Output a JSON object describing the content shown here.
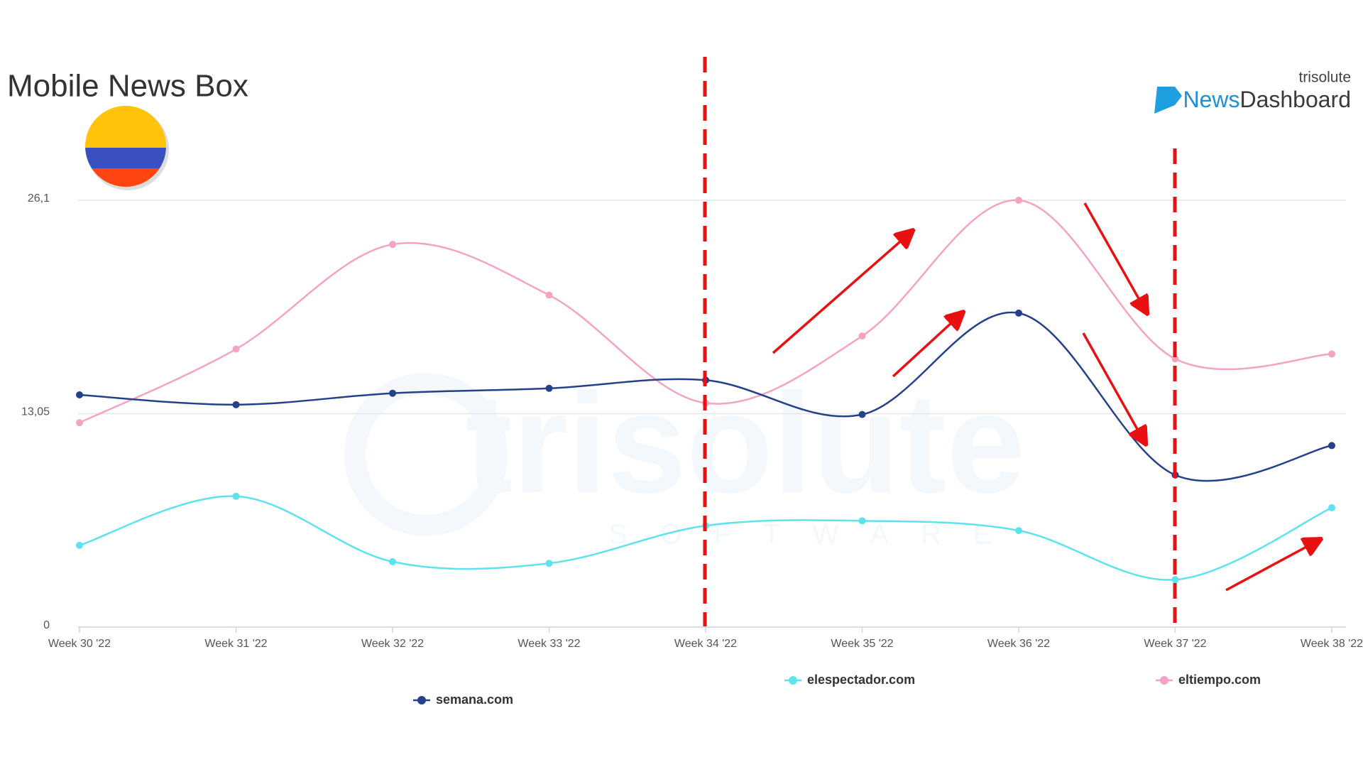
{
  "chart_data": {
    "type": "line",
    "title": "Mobile News Box",
    "brand": {
      "company": "trisolute",
      "product_a": "News",
      "product_b": "Dashboard"
    },
    "watermark": {
      "name": "trisolute",
      "sub": "SOFTWARE"
    },
    "categories": [
      "Week 30 '22",
      "Week 31 '22",
      "Week 32 '22",
      "Week 33 '22",
      "Week 34 '22",
      "Week 35 '22",
      "Week 36 '22",
      "Week 37 '22",
      "Week 38 '22"
    ],
    "series": [
      {
        "name": "elespectador.com",
        "color": "#5ee3ee",
        "values": [
          5.0,
          8.0,
          4.0,
          3.9,
          6.2,
          6.5,
          5.9,
          2.9,
          7.3
        ]
      },
      {
        "name": "eltiempo.com",
        "color": "#f5a3c2",
        "values": [
          12.5,
          17.0,
          23.4,
          20.3,
          13.7,
          17.8,
          26.1,
          16.4,
          16.7
        ]
      },
      {
        "name": "semana.com",
        "color": "#24418a",
        "values": [
          14.2,
          13.6,
          14.3,
          14.6,
          15.1,
          13.0,
          19.2,
          9.3,
          11.1
        ]
      }
    ],
    "ylim": [
      0,
      26.1
    ],
    "yticks": [
      0,
      {
        "value": 13.05,
        "label": "13,05"
      },
      {
        "value": 26.1,
        "label": "26,1"
      }
    ],
    "grid": true
  }
}
